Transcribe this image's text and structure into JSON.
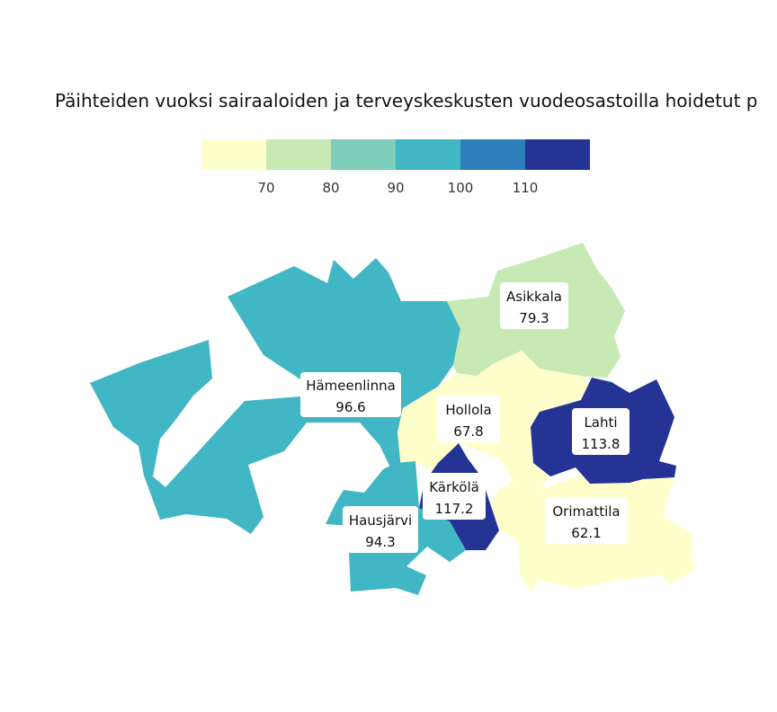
{
  "title": "Päihteiden vuoksi sairaaloiden ja terveyskeskusten vuodeosastoilla hoidetut p",
  "legend": {
    "bins": [
      {
        "color": "#ffffcc"
      },
      {
        "color": "#c7e9b4"
      },
      {
        "color": "#7fcdbb"
      },
      {
        "color": "#41b6c4"
      },
      {
        "color": "#2c7fb8"
      },
      {
        "color": "#253494"
      }
    ],
    "ticks": [
      "70",
      "80",
      "90",
      "100",
      "110"
    ]
  },
  "regions": [
    {
      "id": "hameenlinna",
      "name": "Hämeenlinna",
      "value": "96.6",
      "color": "#41b6c4"
    },
    {
      "id": "asikkala",
      "name": "Asikkala",
      "value": "79.3",
      "color": "#c7e9b4"
    },
    {
      "id": "hollola",
      "name": "Hollola",
      "value": "67.8",
      "color": "#ffffcc"
    },
    {
      "id": "lahti",
      "name": "Lahti",
      "value": "113.8",
      "color": "#253494"
    },
    {
      "id": "karkola",
      "name": "Kärkölä",
      "value": "117.2",
      "color": "#253494"
    },
    {
      "id": "hausjarvi",
      "name": "Hausjärvi",
      "value": "94.3",
      "color": "#41b6c4"
    },
    {
      "id": "orimattila",
      "name": "Orimattila",
      "value": "62.1",
      "color": "#ffffcc"
    }
  ]
}
